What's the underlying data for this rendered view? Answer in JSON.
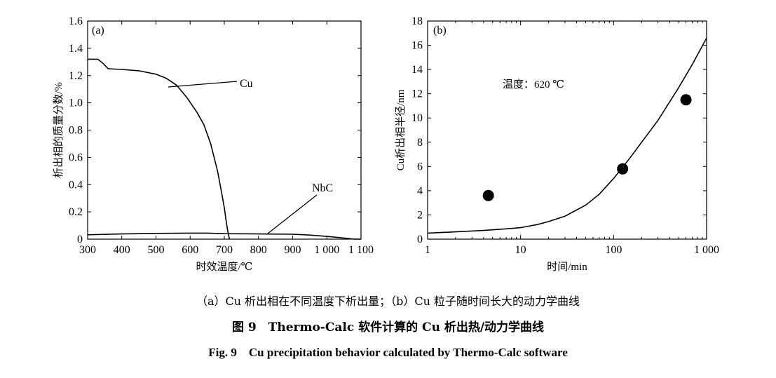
{
  "chart_data": [
    {
      "type": "line",
      "panel_label": "(a)",
      "xlabel": "时效温度/℃",
      "ylabel": "析出相的质量分数/%",
      "xlim": [
        300,
        1100
      ],
      "ylim": [
        0,
        1.6
      ],
      "x_ticks": [
        "300",
        "400",
        "500",
        "600",
        "700",
        "800",
        "900",
        "1 000",
        "1 100"
      ],
      "y_ticks": [
        "0",
        "0.2",
        "0.4",
        "0.6",
        "0.8",
        "1.0",
        "1.2",
        "1.4",
        "1.6"
      ],
      "series": [
        {
          "name": "Cu",
          "x": [
            300,
            330,
            345,
            360,
            400,
            450,
            500,
            530,
            560,
            590,
            620,
            640,
            660,
            680,
            690,
            700,
            705,
            710,
            715
          ],
          "y": [
            1.32,
            1.32,
            1.29,
            1.25,
            1.245,
            1.235,
            1.21,
            1.18,
            1.13,
            1.04,
            0.93,
            0.84,
            0.7,
            0.5,
            0.37,
            0.23,
            0.14,
            0.06,
            0.0
          ]
        },
        {
          "name": "NbC",
          "x": [
            300,
            400,
            500,
            600,
            650,
            700,
            800,
            900,
            950,
            1000,
            1050,
            1080,
            1100
          ],
          "y": [
            0.032,
            0.038,
            0.042,
            0.044,
            0.044,
            0.04,
            0.038,
            0.036,
            0.03,
            0.02,
            0.008,
            0.0,
            0.0
          ]
        }
      ],
      "annotations": [
        "Cu",
        "NbC"
      ]
    },
    {
      "type": "scatter",
      "panel_label": "(b)",
      "xlabel": "时间/min",
      "ylabel": "Cu析出相半径/nm",
      "x_scale": "log",
      "xlim": [
        1,
        1000
      ],
      "ylim": [
        0,
        18
      ],
      "x_ticks": [
        "1",
        "10",
        "100",
        "1 000"
      ],
      "y_ticks": [
        "0",
        "2",
        "4",
        "6",
        "8",
        "10",
        "12",
        "14",
        "16",
        "18"
      ],
      "annotation": "温度：620 ℃",
      "curve": {
        "x": [
          1,
          2,
          4,
          7,
          10,
          15,
          20,
          30,
          50,
          70,
          100,
          150,
          200,
          300,
          500,
          700,
          1000
        ],
        "y": [
          0.5,
          0.6,
          0.72,
          0.85,
          0.95,
          1.2,
          1.45,
          1.9,
          2.8,
          3.7,
          5.0,
          6.7,
          8.0,
          9.8,
          12.5,
          14.4,
          16.6
        ]
      },
      "points": {
        "x": [
          4.5,
          125,
          600
        ],
        "y": [
          3.6,
          5.8,
          11.5
        ]
      }
    }
  ],
  "captions": {
    "sub": "（a）Cu 析出相在不同温度下析出量；（b）Cu 粒子随时间长大的动力学曲线",
    "cn": "图 9　Thermo-Calc 软件计算的 Cu 析出热/动力学曲线",
    "en": "Fig. 9　Cu precipitation behavior calculated by Thermo-Calc software"
  }
}
